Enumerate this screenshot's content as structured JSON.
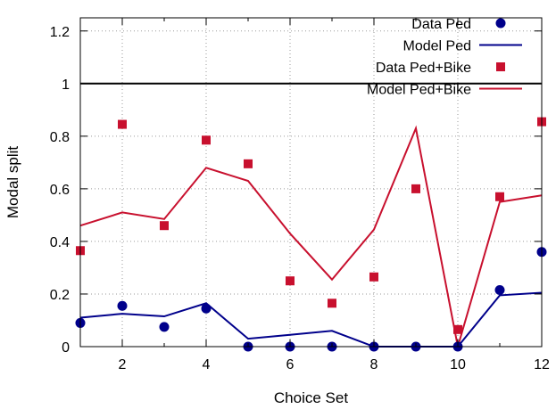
{
  "chart_data": {
    "type": "line",
    "title": "",
    "xlabel": "Choice Set",
    "ylabel": "Modal split",
    "xlim": [
      1,
      12
    ],
    "ylim": [
      0,
      1.25
    ],
    "x_ticks": [
      2,
      4,
      6,
      8,
      10,
      12
    ],
    "y_ticks": [
      0,
      0.2,
      0.4,
      0.6,
      0.8,
      1,
      1.2
    ],
    "grid": true,
    "legend_position": "top-right",
    "reference_line": {
      "y": 1,
      "color": "#000000"
    },
    "x": [
      1,
      2,
      3,
      4,
      5,
      6,
      7,
      8,
      9,
      10,
      11,
      12
    ],
    "series": [
      {
        "name": "Data Ped",
        "kind": "points",
        "marker": "circle",
        "color": "#00008b",
        "values": [
          0.09,
          0.155,
          0.075,
          0.145,
          0.0,
          0.0,
          0.0,
          0.0,
          0.0,
          0.0,
          0.215,
          0.36
        ]
      },
      {
        "name": "Model Ped",
        "kind": "line",
        "color": "#00008b",
        "values": [
          0.11,
          0.125,
          0.115,
          0.165,
          0.03,
          0.045,
          0.06,
          0.0,
          0.0,
          0.0,
          0.195,
          0.205
        ]
      },
      {
        "name": "Data Ped+Bike",
        "kind": "points",
        "marker": "square",
        "color": "#c8102e",
        "values": [
          0.365,
          0.845,
          0.46,
          0.785,
          0.695,
          0.25,
          0.165,
          0.265,
          0.6,
          0.065,
          0.57,
          0.855
        ]
      },
      {
        "name": "Model Ped+Bike",
        "kind": "line",
        "color": "#c8102e",
        "values": [
          0.46,
          0.51,
          0.485,
          0.68,
          0.63,
          0.43,
          0.255,
          0.445,
          0.83,
          0.0,
          0.55,
          0.575
        ]
      }
    ]
  }
}
